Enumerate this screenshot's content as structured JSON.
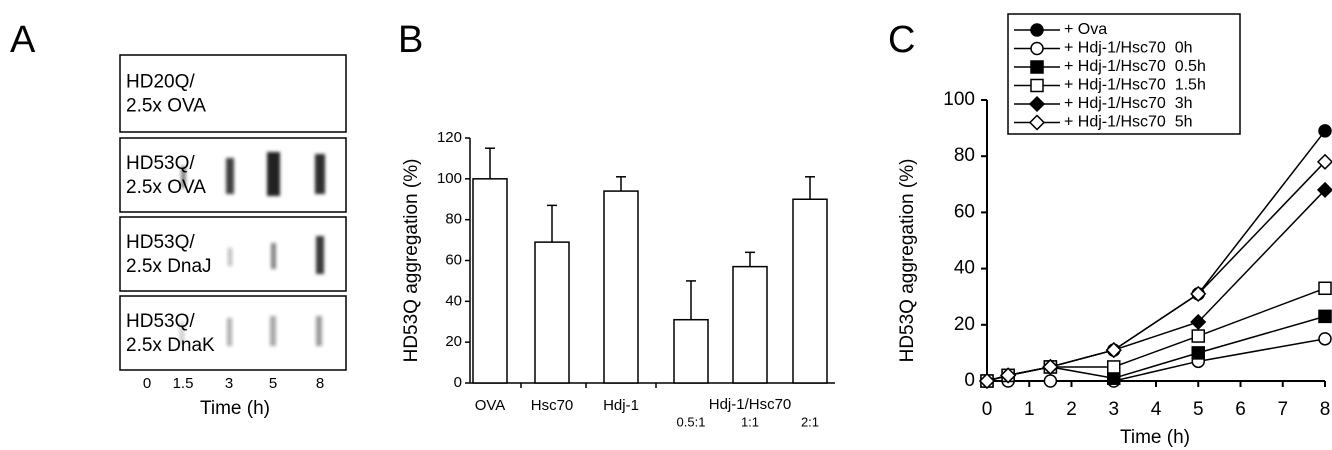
{
  "panel_a": {
    "letter": "A",
    "rows": [
      [
        "HD20Q/",
        "2.5x OVA"
      ],
      [
        "HD53Q/",
        "2.5x OVA"
      ],
      [
        "HD53Q/",
        "2.5x DnaJ"
      ],
      [
        "HD53Q/",
        "2.5x DnaK"
      ]
    ],
    "xticks": [
      0,
      1.5,
      3,
      5,
      8
    ],
    "xlabel": "Time (h)"
  },
  "chart_data": [
    {
      "type": "bar",
      "panel": "B",
      "ylabel": "HD53Q aggregation (%)",
      "categories": [
        "OVA",
        "Hsc70",
        "Hdj-1",
        "0.5:1",
        "1:1",
        "2:1"
      ],
      "group_label": "Hdj-1/Hsc70",
      "values": [
        100,
        69,
        94,
        31,
        57,
        90
      ],
      "errors": [
        15,
        18,
        7,
        19,
        7,
        11
      ],
      "color": "#ffffff",
      "ylim": [
        0,
        120
      ],
      "yticks": [
        0,
        20,
        40,
        60,
        80,
        100,
        120
      ]
    },
    {
      "type": "line",
      "panel": "C",
      "xlabel": "Time (h)",
      "ylabel": "HD53Q aggregation (%)",
      "x": [
        0,
        0.5,
        1.5,
        3,
        5,
        8
      ],
      "xlim": [
        0,
        8
      ],
      "xticks": [
        0,
        1,
        2,
        3,
        4,
        5,
        6,
        7,
        8
      ],
      "ylim": [
        0,
        100
      ],
      "yticks": [
        0,
        20,
        40,
        60,
        80,
        100
      ],
      "series": [
        {
          "name": "+ Ova",
          "color": "#000000",
          "marker": "circle",
          "filled": true,
          "values": [
            0,
            2,
            5,
            11,
            31,
            89
          ]
        },
        {
          "name": "+ Hdj-1/Hsc70  0h",
          "color": "#000000",
          "marker": "circle",
          "filled": false,
          "values": [
            0,
            0,
            0,
            0,
            7,
            15
          ]
        },
        {
          "name": "+ Hdj-1/Hsc70  0.5h",
          "color": "#000000",
          "marker": "square",
          "filled": true,
          "values": [
            0,
            2,
            5,
            1,
            10,
            23
          ]
        },
        {
          "name": "+ Hdj-1/Hsc70  1.5h",
          "color": "#000000",
          "marker": "square",
          "filled": false,
          "values": [
            0,
            2,
            5,
            5,
            16,
            33
          ]
        },
        {
          "name": "+ Hdj-1/Hsc70  3h",
          "color": "#000000",
          "marker": "diamond",
          "filled": true,
          "values": [
            0,
            2,
            5,
            11,
            21,
            68
          ]
        },
        {
          "name": "+ Hdj-1/Hsc70  5h",
          "color": "#000000",
          "marker": "diamond",
          "filled": false,
          "values": [
            0,
            2,
            5,
            11,
            31,
            78
          ]
        }
      ]
    }
  ]
}
